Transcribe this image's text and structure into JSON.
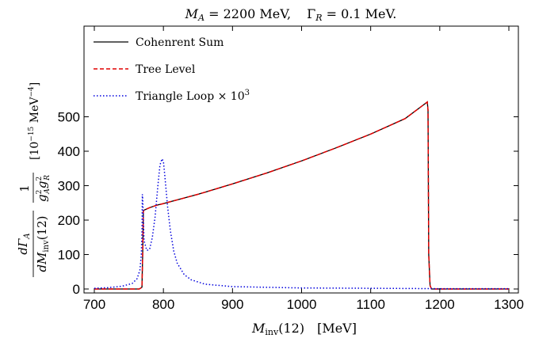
{
  "chart_data": {
    "type": "line",
    "title": "M_A = 2200 MeV,    Γ_R = 0.1 MeV.",
    "title_parts": {
      "ma_label": "M",
      "ma_sub": "A",
      "ma_value": " = 2200 MeV,",
      "gamma_label": "Γ",
      "gamma_sub": "R",
      "gamma_value": " = 0.1 MeV."
    },
    "xlabel": "M_inv(12)   [MeV]",
    "xlabel_parts": {
      "main": "M",
      "sub": "inv",
      "arg": "(12)",
      "unit": "[MeV]"
    },
    "ylabel": "dΓ_A / dM_inv(12) · 1/(g_A² g_R²)   [10⁻¹⁵ MeV⁻⁴]",
    "ylabel_parts": {
      "frac_num": "dΓ",
      "frac_num_sub": "A",
      "frac_den": "dM",
      "frac_den_sub": "inv",
      "frac_den_arg": "(12)",
      "one": "1",
      "g_factor": "g",
      "sub_a": "A",
      "sub_r": "R",
      "pow2": "2",
      "unit_open": "[10",
      "unit_exp": "−15",
      "unit_mid": "  MeV",
      "unit_exp2": "−4",
      "unit_close": "]"
    },
    "xlim": [
      700,
      1300
    ],
    "ylim": [
      0,
      560
    ],
    "xticks": [
      700,
      800,
      900,
      1000,
      1100,
      1200,
      1300
    ],
    "yticks": [
      0,
      100,
      200,
      300,
      400,
      500
    ],
    "legend_position": "top-left",
    "series": [
      {
        "name": "Cohenrent Sum",
        "color": "#000000",
        "style": "solid",
        "x": [
          700,
          765,
          769,
          770,
          771,
          780,
          790,
          800,
          850,
          900,
          950,
          1000,
          1050,
          1100,
          1150,
          1180,
          1182,
          1183,
          1184,
          1186,
          1188,
          1300
        ],
        "y": [
          0,
          0,
          5,
          100,
          228,
          236,
          243,
          248,
          275,
          305,
          337,
          372,
          410,
          450,
          495,
          540,
          543,
          520,
          100,
          10,
          0,
          0
        ]
      },
      {
        "name": "Tree Level",
        "color": "#e00000",
        "style": "dashed",
        "x": [
          700,
          765,
          769,
          770,
          771,
          780,
          790,
          800,
          850,
          900,
          950,
          1000,
          1050,
          1100,
          1150,
          1180,
          1182,
          1183,
          1184,
          1186,
          1188,
          1300
        ],
        "y": [
          0,
          0,
          5,
          100,
          228,
          236,
          243,
          248,
          275,
          305,
          337,
          372,
          410,
          450,
          495,
          540,
          543,
          520,
          100,
          10,
          0,
          0
        ]
      },
      {
        "name": "Triangle Loop × 10³",
        "name_parts": {
          "main": "Triangle Loop × 10",
          "exp": "3"
        },
        "color": "#0000dd",
        "style": "dotted",
        "x": [
          700,
          720,
          740,
          755,
          762,
          766,
          768,
          769,
          769.5,
          770,
          772,
          776,
          780,
          784,
          788,
          792,
          795,
          798,
          800,
          802,
          806,
          810,
          815,
          820,
          830,
          840,
          860,
          900,
          1000,
          1100,
          1200,
          1300
        ],
        "y": [
          2,
          4,
          8,
          16,
          30,
          55,
          100,
          170,
          275,
          262,
          140,
          112,
          115,
          150,
          210,
          300,
          360,
          378,
          370,
          330,
          240,
          170,
          110,
          75,
          42,
          27,
          14,
          7,
          3,
          2,
          1,
          1
        ]
      }
    ]
  }
}
